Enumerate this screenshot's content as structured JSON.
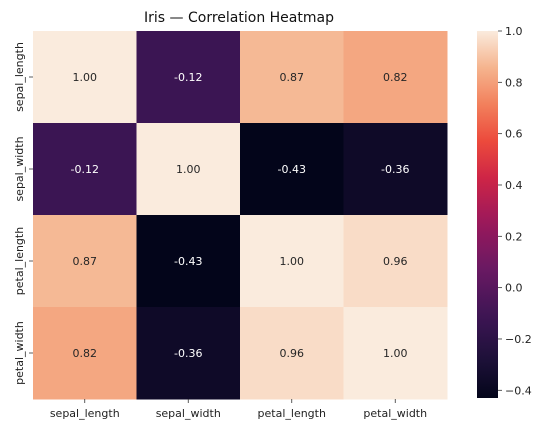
{
  "chart_data": {
    "type": "heatmap",
    "title": "Iris — Correlation Heatmap",
    "x_labels": [
      "sepal_length",
      "sepal_width",
      "petal_length",
      "petal_width"
    ],
    "y_labels": [
      "sepal_length",
      "sepal_width",
      "petal_length",
      "petal_width"
    ],
    "values": [
      [
        1.0,
        -0.12,
        0.87,
        0.82
      ],
      [
        -0.12,
        1.0,
        -0.43,
        -0.36
      ],
      [
        0.87,
        -0.43,
        1.0,
        0.96
      ],
      [
        0.82,
        -0.36,
        0.96,
        1.0
      ]
    ],
    "value_labels": [
      [
        "1.00",
        "-0.12",
        "0.87",
        "0.82"
      ],
      [
        "-0.12",
        "1.00",
        "-0.43",
        "-0.36"
      ],
      [
        "0.87",
        "-0.43",
        "1.00",
        "0.96"
      ],
      [
        "0.82",
        "-0.36",
        "0.96",
        "1.00"
      ]
    ],
    "colorbar": {
      "range": [
        -0.43,
        1.0
      ],
      "ticks": [
        "1.0",
        "0.8",
        "0.6",
        "0.4",
        "0.2",
        "0.0",
        "−0.2",
        "−0.4"
      ],
      "tick_values": [
        1.0,
        0.8,
        0.6,
        0.4,
        0.2,
        0.0,
        -0.2,
        -0.4
      ],
      "colormap": "rocket"
    }
  }
}
